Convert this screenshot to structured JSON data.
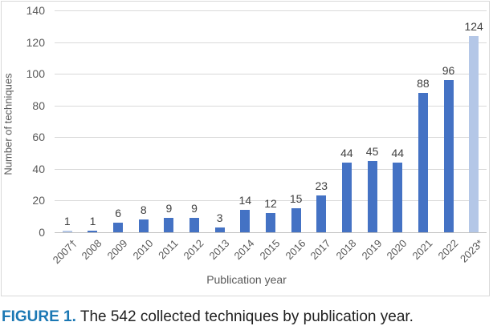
{
  "chart_data": {
    "type": "bar",
    "title": "",
    "xlabel": "Publication year",
    "ylabel": "Number of techniques",
    "ylim": [
      0,
      140
    ],
    "yticks": [
      0,
      20,
      40,
      60,
      80,
      100,
      120,
      140
    ],
    "grid": true,
    "legend": null,
    "categories": [
      "2007†",
      "2008",
      "2009",
      "2010",
      "2011",
      "2012",
      "2013",
      "2014",
      "2015",
      "2016",
      "2017",
      "2018",
      "2019",
      "2020",
      "2021",
      "2022",
      "2023*"
    ],
    "values": [
      1,
      1,
      6,
      8,
      9,
      9,
      3,
      14,
      12,
      15,
      23,
      44,
      45,
      44,
      88,
      96,
      124
    ],
    "bar_colors": [
      "#b4c7e7",
      "#4472c4",
      "#4472c4",
      "#4472c4",
      "#4472c4",
      "#4472c4",
      "#4472c4",
      "#4472c4",
      "#4472c4",
      "#4472c4",
      "#4472c4",
      "#4472c4",
      "#4472c4",
      "#4472c4",
      "#4472c4",
      "#4472c4",
      "#b4c7e7"
    ],
    "data_labels": [
      "1",
      "1",
      "6",
      "8",
      "9",
      "9",
      "3",
      "14",
      "12",
      "15",
      "23",
      "44",
      "45",
      "44",
      "88",
      "96",
      "124"
    ]
  },
  "caption": {
    "figure_label": "FIGURE 1.",
    "text": " The 542 collected techniques by publication year."
  },
  "colors": {
    "bar_primary": "#4472c4",
    "bar_partial": "#b4c7e7",
    "caption_label": "#1b78b4",
    "gridline": "#d9d9d9"
  }
}
